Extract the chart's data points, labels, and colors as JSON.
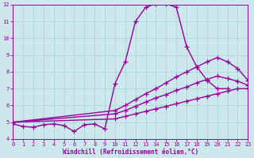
{
  "xlabel": "Windchill (Refroidissement éolien,°C)",
  "xlim": [
    0,
    23
  ],
  "ylim": [
    4,
    12
  ],
  "xticks": [
    0,
    1,
    2,
    3,
    4,
    5,
    6,
    7,
    8,
    9,
    10,
    11,
    12,
    13,
    14,
    15,
    16,
    17,
    18,
    19,
    20,
    21,
    22,
    23
  ],
  "yticks": [
    4,
    5,
    6,
    7,
    8,
    9,
    10,
    11,
    12
  ],
  "background_color": "#cce8ed",
  "grid_color": "#aed4da",
  "line_color": "#990099",
  "line_width": 1.0,
  "marker": "+",
  "marker_size": 4,
  "series": [
    {
      "x": [
        0,
        1,
        2,
        3,
        4,
        5,
        6,
        7,
        8,
        9,
        10,
        11,
        12,
        13,
        14,
        15,
        16,
        17,
        18,
        19,
        20,
        21
      ],
      "y": [
        4.9,
        4.75,
        4.7,
        4.85,
        4.9,
        4.8,
        4.45,
        4.85,
        4.9,
        4.6,
        7.3,
        8.6,
        11.0,
        11.85,
        12.05,
        12.05,
        11.85,
        9.5,
        8.3,
        7.5,
        7.0,
        7.0
      ]
    },
    {
      "x": [
        0,
        10,
        11,
        12,
        13,
        14,
        15,
        16,
        17,
        18,
        19,
        20,
        21,
        22,
        23
      ],
      "y": [
        5.0,
        5.7,
        6.0,
        6.35,
        6.7,
        7.0,
        7.35,
        7.7,
        8.0,
        8.3,
        8.6,
        8.85,
        8.6,
        8.2,
        7.5
      ]
    },
    {
      "x": [
        0,
        10,
        11,
        12,
        13,
        14,
        15,
        16,
        17,
        18,
        19,
        20,
        21,
        22,
        23
      ],
      "y": [
        5.0,
        5.5,
        5.7,
        5.95,
        6.2,
        6.45,
        6.65,
        6.9,
        7.1,
        7.35,
        7.55,
        7.75,
        7.6,
        7.45,
        7.2
      ]
    },
    {
      "x": [
        0,
        10,
        11,
        12,
        13,
        14,
        15,
        16,
        17,
        18,
        19,
        20,
        21,
        22,
        23
      ],
      "y": [
        5.0,
        5.2,
        5.35,
        5.5,
        5.65,
        5.8,
        5.95,
        6.1,
        6.25,
        6.4,
        6.55,
        6.7,
        6.85,
        7.0,
        7.0
      ]
    }
  ]
}
